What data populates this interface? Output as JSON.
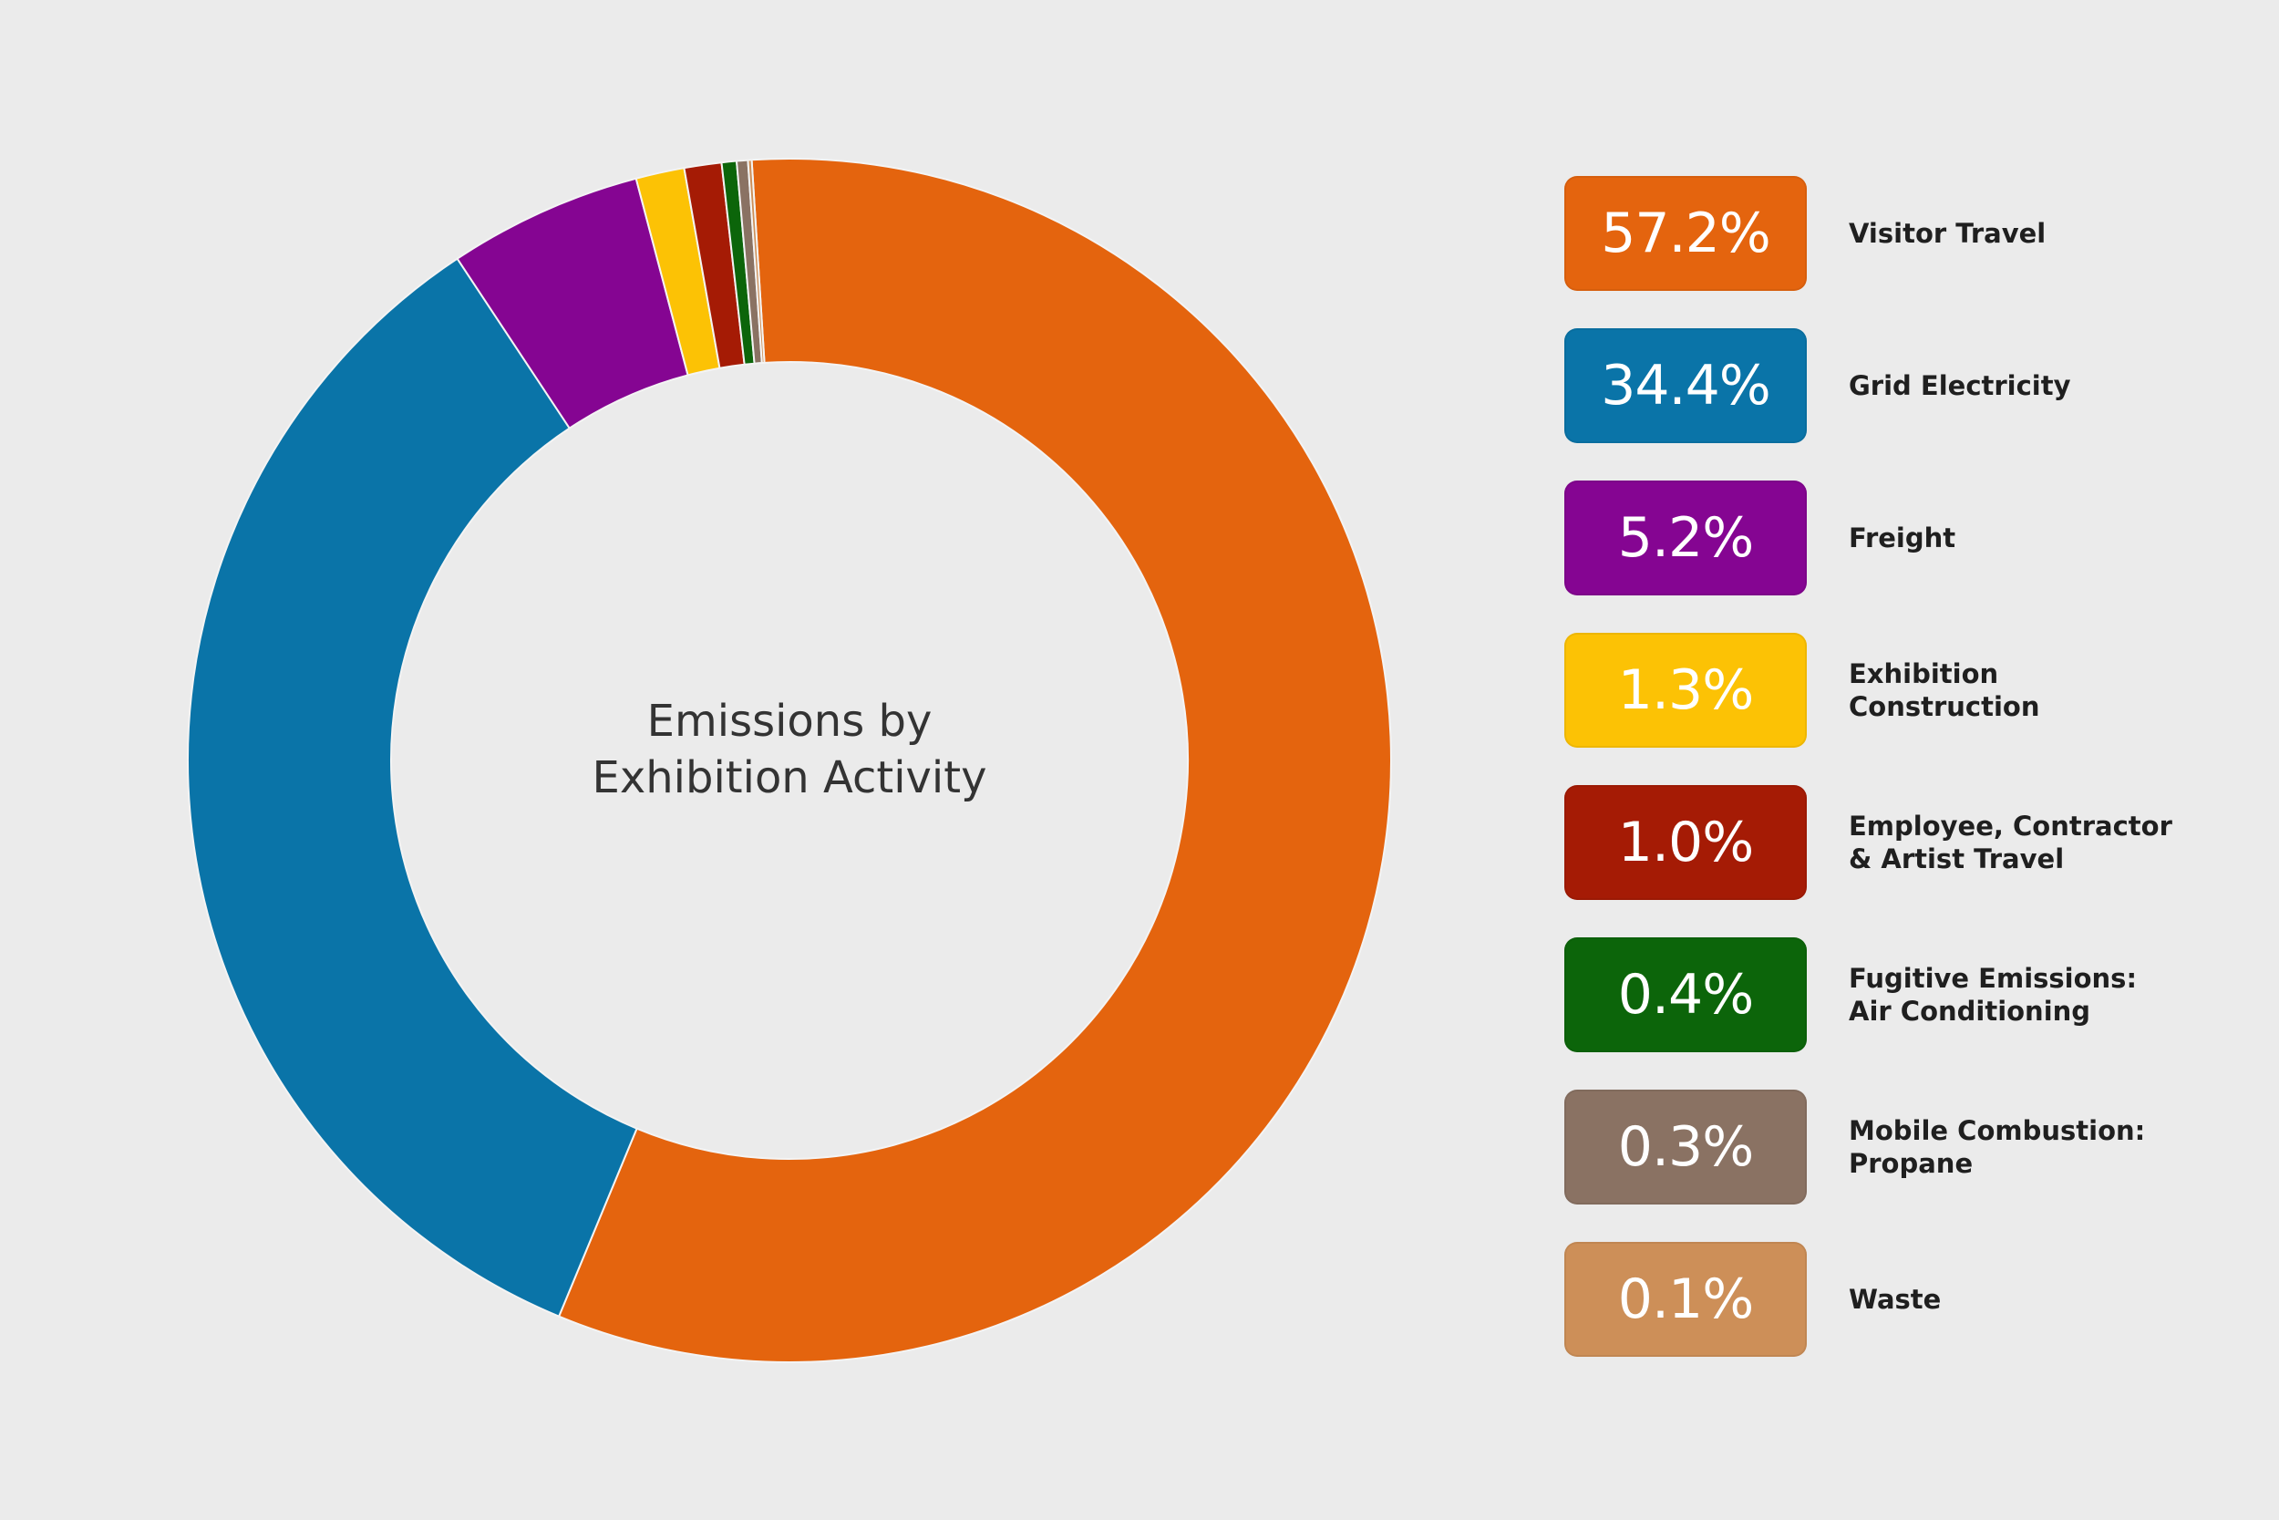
{
  "chart_data": {
    "type": "pie",
    "title": "Emissions by Exhibition Activity",
    "title_lines": [
      "Emissions by",
      "Exhibition Activity"
    ],
    "donut": true,
    "start_angle_deg": -3.6,
    "direction": "clockwise",
    "legend_position": "right",
    "slices": [
      {
        "name": "Visitor Travel",
        "label_lines": [
          "Visitor Travel"
        ],
        "value": 57.2,
        "display": "57.2%",
        "color": "#e4640e"
      },
      {
        "name": "Grid Electricity",
        "label_lines": [
          "Grid Electricity"
        ],
        "value": 34.4,
        "display": "34.4%",
        "color": "#0a74a8"
      },
      {
        "name": "Freight",
        "label_lines": [
          "Freight"
        ],
        "value": 5.2,
        "display": "5.2%",
        "color": "#850592"
      },
      {
        "name": "Exhibition Construction",
        "label_lines": [
          "Exhibition",
          "Construction"
        ],
        "value": 1.3,
        "display": "1.3%",
        "color": "#fcc205"
      },
      {
        "name": "Employee, Contractor & Artist Travel",
        "label_lines": [
          "Employee, Contractor",
          "& Artist Travel"
        ],
        "value": 1.0,
        "display": "1.0%",
        "color": "#a51b05"
      },
      {
        "name": "Fugitive Emissions: Air Conditioning",
        "label_lines": [
          "Fugitive Emissions:",
          "Air Conditioning"
        ],
        "value": 0.4,
        "display": "0.4%",
        "color": "#0c650a"
      },
      {
        "name": "Mobile Combustion: Propane",
        "label_lines": [
          "Mobile Combustion:",
          "Propane"
        ],
        "value": 0.3,
        "display": "0.3%",
        "color": "#8a7263"
      },
      {
        "name": "Waste",
        "label_lines": [
          "Waste"
        ],
        "value": 0.1,
        "display": "0.1%",
        "color": "#cd8f58"
      }
    ]
  }
}
